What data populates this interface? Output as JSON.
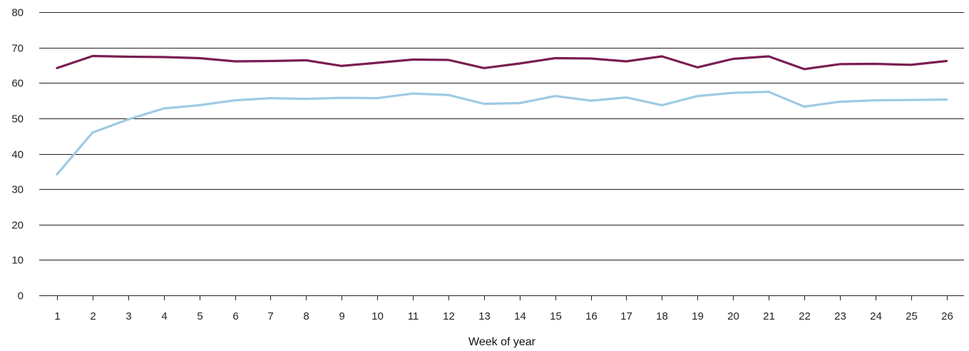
{
  "chart_data": {
    "type": "line",
    "title": "",
    "xlabel": "Week of year",
    "ylabel": "",
    "ylim": [
      0,
      80
    ],
    "yticks": [
      0,
      10,
      20,
      30,
      40,
      50,
      60,
      70,
      80
    ],
    "grid": "horizontal",
    "legend": "none",
    "x": [
      1,
      2,
      3,
      4,
      5,
      6,
      7,
      8,
      9,
      10,
      11,
      12,
      13,
      14,
      15,
      16,
      17,
      18,
      19,
      20,
      21,
      22,
      23,
      24,
      25,
      26
    ],
    "series": [
      {
        "color": "#7b1e52",
        "values": [
          64.2,
          67.6,
          67.4,
          67.3,
          67.0,
          66.1,
          66.2,
          66.4,
          64.8,
          65.7,
          66.6,
          66.5,
          64.2,
          65.5,
          67.0,
          66.9,
          66.1,
          67.5,
          64.4,
          66.8,
          67.5,
          63.9,
          65.3,
          65.4,
          65.1,
          66.2
        ]
      },
      {
        "color": "#9ecae4",
        "values": [
          34.2,
          46.0,
          49.7,
          52.8,
          53.7,
          55.1,
          55.7,
          55.5,
          55.8,
          55.7,
          57.0,
          56.6,
          54.1,
          54.3,
          56.3,
          55.0,
          55.9,
          53.7,
          56.3,
          57.2,
          57.5,
          53.3,
          54.7,
          55.1,
          55.2,
          55.3
        ]
      }
    ]
  }
}
